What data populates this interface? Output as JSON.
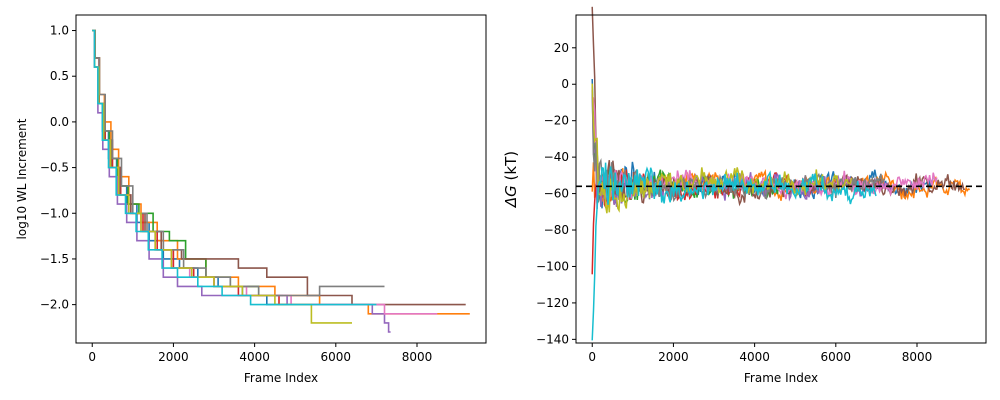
{
  "chart_data": [
    {
      "type": "line",
      "xlabel": "Frame Index",
      "ylabel": "log10 WL Increment",
      "xlim": [
        -400,
        9700
      ],
      "ylim": [
        -2.42,
        1.17
      ],
      "xticks": [
        0,
        2000,
        4000,
        6000,
        8000
      ],
      "yticks": [
        1.0,
        0.5,
        0.0,
        -0.5,
        -1.0,
        -1.5,
        -2.0
      ],
      "ytick_labels": [
        "1.0",
        "0.5",
        "0.0",
        "−0.5",
        "−1.0",
        "−1.5",
        "−2.0"
      ],
      "grid": false,
      "legend": "none",
      "series": [
        {
          "color": "#1f77b4",
          "steps": [
            [
              0,
              1.0
            ],
            [
              60,
              0.6
            ],
            [
              150,
              0.2
            ],
            [
              250,
              -0.1
            ],
            [
              400,
              -0.4
            ],
            [
              600,
              -0.7
            ],
            [
              850,
              -0.9
            ],
            [
              1100,
              -1.1
            ],
            [
              1400,
              -1.3
            ],
            [
              1750,
              -1.5
            ],
            [
              2150,
              -1.6
            ],
            [
              2600,
              -1.7
            ],
            [
              3100,
              -1.8
            ],
            [
              3700,
              -1.9
            ],
            [
              4300,
              -2.0
            ],
            [
              5000,
              -2.0
            ]
          ]
        },
        {
          "color": "#ff7f0e",
          "steps": [
            [
              0,
              1.0
            ],
            [
              70,
              0.7
            ],
            [
              180,
              0.3
            ],
            [
              300,
              0.0
            ],
            [
              460,
              -0.3
            ],
            [
              650,
              -0.6
            ],
            [
              900,
              -0.9
            ],
            [
              1200,
              -1.1
            ],
            [
              1600,
              -1.3
            ],
            [
              2100,
              -1.5
            ],
            [
              2800,
              -1.7
            ],
            [
              3600,
              -1.8
            ],
            [
              4500,
              -1.9
            ],
            [
              5600,
              -2.0
            ],
            [
              6800,
              -2.1
            ],
            [
              9300,
              -2.1
            ]
          ]
        },
        {
          "color": "#2ca02c",
          "steps": [
            [
              0,
              1.0
            ],
            [
              60,
              0.6
            ],
            [
              160,
              0.2
            ],
            [
              280,
              -0.1
            ],
            [
              420,
              -0.4
            ],
            [
              620,
              -0.7
            ],
            [
              880,
              -0.9
            ],
            [
              1150,
              -1.0
            ],
            [
              1500,
              -1.2
            ],
            [
              1900,
              -1.3
            ],
            [
              2300,
              -1.5
            ],
            [
              2800,
              -1.7
            ],
            [
              3400,
              -1.8
            ],
            [
              4100,
              -1.9
            ],
            [
              4700,
              -1.9
            ]
          ]
        },
        {
          "color": "#d62728",
          "steps": [
            [
              0,
              1.0
            ],
            [
              70,
              0.7
            ],
            [
              170,
              0.2
            ],
            [
              320,
              -0.2
            ],
            [
              500,
              -0.5
            ],
            [
              700,
              -0.8
            ],
            [
              950,
              -1.0
            ],
            [
              1250,
              -1.2
            ],
            [
              1600,
              -1.4
            ],
            [
              2000,
              -1.6
            ],
            [
              2500,
              -1.7
            ],
            [
              3000,
              -1.8
            ],
            [
              3600,
              -1.9
            ],
            [
              4600,
              -2.0
            ],
            [
              5600,
              -2.0
            ]
          ]
        },
        {
          "color": "#9467bd",
          "steps": [
            [
              0,
              1.0
            ],
            [
              55,
              0.6
            ],
            [
              140,
              0.1
            ],
            [
              260,
              -0.3
            ],
            [
              420,
              -0.6
            ],
            [
              620,
              -0.9
            ],
            [
              850,
              -1.1
            ],
            [
              1100,
              -1.3
            ],
            [
              1400,
              -1.5
            ],
            [
              1750,
              -1.7
            ],
            [
              2100,
              -1.8
            ],
            [
              2700,
              -1.9
            ],
            [
              3800,
              -1.9
            ],
            [
              4800,
              -2.0
            ],
            [
              6000,
              -2.0
            ],
            [
              6900,
              -2.1
            ],
            [
              7200,
              -2.2
            ],
            [
              7300,
              -2.3
            ],
            [
              7350,
              -2.3
            ]
          ]
        },
        {
          "color": "#8c564b",
          "steps": [
            [
              0,
              1.0
            ],
            [
              65,
              0.7
            ],
            [
              170,
              0.2
            ],
            [
              300,
              -0.2
            ],
            [
              470,
              -0.5
            ],
            [
              680,
              -0.8
            ],
            [
              950,
              -1.0
            ],
            [
              1300,
              -1.2
            ],
            [
              1700,
              -1.4
            ],
            [
              2200,
              -1.5
            ],
            [
              2800,
              -1.5
            ],
            [
              3600,
              -1.6
            ],
            [
              4300,
              -1.7
            ],
            [
              5300,
              -1.9
            ],
            [
              6400,
              -2.0
            ],
            [
              8300,
              -2.0
            ],
            [
              9200,
              -2.0
            ]
          ]
        },
        {
          "color": "#e377c2",
          "steps": [
            [
              0,
              1.0
            ],
            [
              60,
              0.6
            ],
            [
              150,
              0.2
            ],
            [
              270,
              -0.2
            ],
            [
              440,
              -0.5
            ],
            [
              650,
              -0.8
            ],
            [
              900,
              -1.0
            ],
            [
              1200,
              -1.2
            ],
            [
              1550,
              -1.4
            ],
            [
              1950,
              -1.6
            ],
            [
              2400,
              -1.7
            ],
            [
              3000,
              -1.8
            ],
            [
              3800,
              -1.9
            ],
            [
              4900,
              -2.0
            ],
            [
              6100,
              -2.0
            ],
            [
              7200,
              -2.1
            ],
            [
              8500,
              -2.1
            ]
          ]
        },
        {
          "color": "#7f7f7f",
          "steps": [
            [
              0,
              1.0
            ],
            [
              70,
              0.7
            ],
            [
              180,
              0.3
            ],
            [
              320,
              -0.1
            ],
            [
              500,
              -0.4
            ],
            [
              720,
              -0.7
            ],
            [
              1000,
              -1.0
            ],
            [
              1350,
              -1.2
            ],
            [
              1750,
              -1.4
            ],
            [
              2250,
              -1.6
            ],
            [
              2800,
              -1.7
            ],
            [
              3400,
              -1.8
            ],
            [
              4100,
              -1.9
            ],
            [
              4800,
              -1.9
            ],
            [
              5600,
              -1.8
            ],
            [
              7200,
              -1.8
            ]
          ]
        },
        {
          "color": "#bcbd22",
          "steps": [
            [
              0,
              1.0
            ],
            [
              60,
              0.6
            ],
            [
              160,
              0.2
            ],
            [
              280,
              -0.2
            ],
            [
              450,
              -0.5
            ],
            [
              650,
              -0.8
            ],
            [
              900,
              -1.0
            ],
            [
              1200,
              -1.2
            ],
            [
              1550,
              -1.4
            ],
            [
              1950,
              -1.6
            ],
            [
              2450,
              -1.7
            ],
            [
              3000,
              -1.8
            ],
            [
              3700,
              -1.9
            ],
            [
              4500,
              -2.0
            ],
            [
              5400,
              -2.2
            ],
            [
              6400,
              -2.2
            ]
          ]
        },
        {
          "color": "#17becf",
          "steps": [
            [
              0,
              1.0
            ],
            [
              55,
              0.6
            ],
            [
              140,
              0.2
            ],
            [
              250,
              -0.2
            ],
            [
              400,
              -0.5
            ],
            [
              590,
              -0.8
            ],
            [
              820,
              -1.0
            ],
            [
              1080,
              -1.2
            ],
            [
              1380,
              -1.4
            ],
            [
              1720,
              -1.6
            ],
            [
              2100,
              -1.7
            ],
            [
              2600,
              -1.8
            ],
            [
              3200,
              -1.9
            ],
            [
              3900,
              -2.0
            ],
            [
              5000,
              -2.0
            ],
            [
              6000,
              -2.0
            ],
            [
              7000,
              -2.0
            ]
          ]
        }
      ]
    },
    {
      "type": "line",
      "xlabel": "Frame Index",
      "ylabel": "ΔG (kT)",
      "ylabel_symbol": "ΔG",
      "ylabel_unit": " (kT)",
      "xlim": [
        -400,
        9700
      ],
      "ylim": [
        -142,
        38
      ],
      "xticks": [
        0,
        2000,
        4000,
        6000,
        8000
      ],
      "yticks": [
        20,
        0,
        -20,
        -40,
        -60,
        -80,
        -100,
        -120,
        -140
      ],
      "ytick_labels": [
        "20",
        "0",
        "−20",
        "−40",
        "−60",
        "−80",
        "−100",
        "−120",
        "−140"
      ],
      "reference_line": {
        "y": -56,
        "style": "dashed",
        "color": "#000000"
      },
      "grid": false,
      "legend": "none",
      "series": [
        {
          "color": "#1f77b4",
          "n_points": 8400,
          "peak": 5,
          "seed": 11,
          "band": 12
        },
        {
          "color": "#ff7f0e",
          "n_points": 9300,
          "peak": -40,
          "seed": 23,
          "band": 10
        },
        {
          "color": "#2ca02c",
          "n_points": 5000,
          "peak": -30,
          "seed": 37,
          "band": 12
        },
        {
          "color": "#d62728",
          "n_points": 5600,
          "peak": -100,
          "seed": 41,
          "band": 12
        },
        {
          "color": "#9467bd",
          "n_points": 7400,
          "peak": -20,
          "seed": 53,
          "band": 12
        },
        {
          "color": "#8c564b",
          "n_points": 9200,
          "peak": 30,
          "seed": 67,
          "band": 12
        },
        {
          "color": "#e377c2",
          "n_points": 8500,
          "peak": 0,
          "seed": 71,
          "band": 11
        },
        {
          "color": "#7f7f7f",
          "n_points": 7200,
          "peak": -20,
          "seed": 83,
          "band": 12
        },
        {
          "color": "#bcbd22",
          "n_points": 6400,
          "peak": -10,
          "seed": 97,
          "band": 12
        },
        {
          "color": "#17becf",
          "n_points": 7000,
          "peak": -132,
          "seed": 101,
          "band": 13
        }
      ]
    }
  ]
}
